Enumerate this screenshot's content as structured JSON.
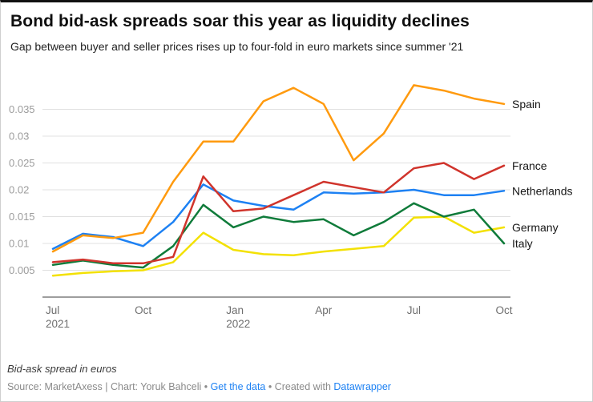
{
  "chart_data": {
    "type": "line",
    "title": "Bond bid-ask spreads soar this year as liquidity declines",
    "subtitle": "Gap between buyer and seller prices rises up to four-fold in euro markets since summer '21",
    "xlabel": "",
    "ylabel": "",
    "ylim": [
      0,
      0.0405
    ],
    "grid": true,
    "legend_position": "line-end-labels",
    "x": [
      "Jul 2021",
      "Aug 2021",
      "Sep 2021",
      "Oct 2021",
      "Nov 2021",
      "Dec 2021",
      "Jan 2022",
      "Feb 2022",
      "Mar 2022",
      "Apr 2022",
      "May 2022",
      "Jun 2022",
      "Jul 2022",
      "Aug 2022",
      "Sep 2022",
      "Oct 2022"
    ],
    "x_ticks": [
      {
        "index": 0,
        "label": "Jul",
        "year": "2021"
      },
      {
        "index": 3,
        "label": "Oct"
      },
      {
        "index": 6,
        "label": "Jan",
        "year": "2022"
      },
      {
        "index": 9,
        "label": "Apr"
      },
      {
        "index": 12,
        "label": "Jul"
      },
      {
        "index": 15,
        "label": "Oct"
      }
    ],
    "y_ticks": [
      0.005,
      0.01,
      0.015,
      0.02,
      0.025,
      0.03,
      0.035
    ],
    "y_tick_labels": [
      "0.005",
      "0.01",
      "0.015",
      "0.02",
      "0.025",
      "0.03",
      "0.035"
    ],
    "series": [
      {
        "name": "Spain",
        "color": "#ff9a0e",
        "values": [
          0.0085,
          0.0115,
          0.011,
          0.012,
          0.0215,
          0.029,
          0.029,
          0.0365,
          0.039,
          0.036,
          0.0255,
          0.0305,
          0.0395,
          0.0385,
          0.037,
          0.036
        ]
      },
      {
        "name": "France",
        "color": "#d0342c",
        "values": [
          0.0065,
          0.007,
          0.0063,
          0.0063,
          0.0075,
          0.0225,
          0.016,
          0.0165,
          0.019,
          0.0215,
          0.0205,
          0.0195,
          0.024,
          0.025,
          0.022,
          0.0245
        ]
      },
      {
        "name": "Netherlands",
        "color": "#1d81f3",
        "values": [
          0.009,
          0.0118,
          0.0112,
          0.0095,
          0.014,
          0.021,
          0.018,
          0.017,
          0.0163,
          0.0195,
          0.0193,
          0.0195,
          0.02,
          0.019,
          0.019,
          0.0198
        ]
      },
      {
        "name": "Germany",
        "color": "#f3e104",
        "values": [
          0.004,
          0.0045,
          0.0048,
          0.005,
          0.0065,
          0.012,
          0.0088,
          0.008,
          0.0078,
          0.0085,
          0.009,
          0.0095,
          0.0148,
          0.015,
          0.012,
          0.013
        ]
      },
      {
        "name": "Italy",
        "color": "#0f7b3a",
        "values": [
          0.006,
          0.0068,
          0.006,
          0.0055,
          0.0095,
          0.0172,
          0.013,
          0.015,
          0.014,
          0.0145,
          0.0115,
          0.014,
          0.0175,
          0.015,
          0.0163,
          0.01
        ]
      }
    ],
    "draw_order": [
      2,
      3,
      4,
      1,
      0
    ]
  },
  "footer": {
    "note": "Bid-ask spread in euros",
    "source_prefix": "Source: MarketAxess | Chart: Yoruk Bahceli",
    "separator": " • ",
    "get_data_label": "Get the data",
    "created_with": "Created with ",
    "datawrapper_label": "Datawrapper",
    "link_color": "#1d81f3"
  }
}
